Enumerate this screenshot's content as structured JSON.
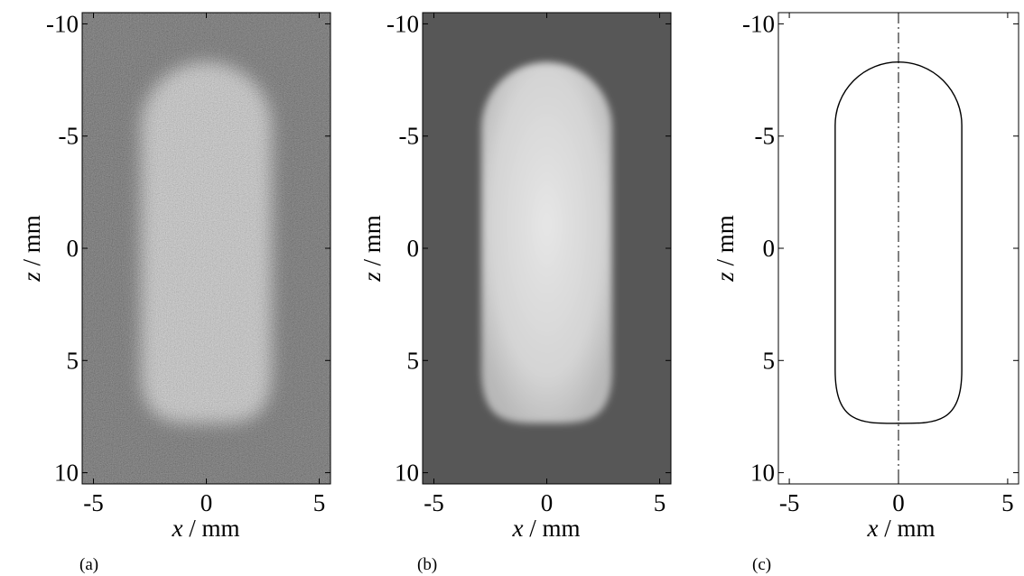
{
  "panels": [
    {
      "id": "a",
      "label": "(a)",
      "type": "image",
      "style": "noisy",
      "xlabel_var": "x",
      "xlabel_unit": " / mm",
      "ylabel_var": "z",
      "ylabel_unit": " / mm",
      "x_ticks": [
        "-5",
        "0",
        "5"
      ],
      "y_ticks": [
        "-10",
        "-5",
        "0",
        "5",
        "10"
      ]
    },
    {
      "id": "b",
      "label": "(b)",
      "type": "image",
      "style": "smooth",
      "xlabel_var": "x",
      "xlabel_unit": " / mm",
      "ylabel_var": "z",
      "ylabel_unit": " / mm",
      "x_ticks": [
        "-5",
        "0",
        "5"
      ],
      "y_ticks": [
        "-10",
        "-5",
        "0",
        "5",
        "10"
      ]
    },
    {
      "id": "c",
      "label": "(c)",
      "type": "contour",
      "style": "outline",
      "xlabel_var": "x",
      "xlabel_unit": " / mm",
      "ylabel_var": "z",
      "ylabel_unit": " / mm",
      "x_ticks": [
        "-5",
        "0",
        "5"
      ],
      "y_ticks": [
        "-10",
        "-5",
        "0",
        "5",
        "10"
      ]
    }
  ],
  "axis_ranges": {
    "x": [
      -5.5,
      5.5
    ],
    "z": [
      -10.5,
      10.5
    ]
  },
  "shape": {
    "half_width": 2.9,
    "z_top": -8.3,
    "z_bottom": 7.8
  },
  "colors": {
    "noisy_bg": "#3a3a3a",
    "smooth_bg": "#575757",
    "blob_light": "#d8d8d8",
    "outline": "#000000"
  }
}
